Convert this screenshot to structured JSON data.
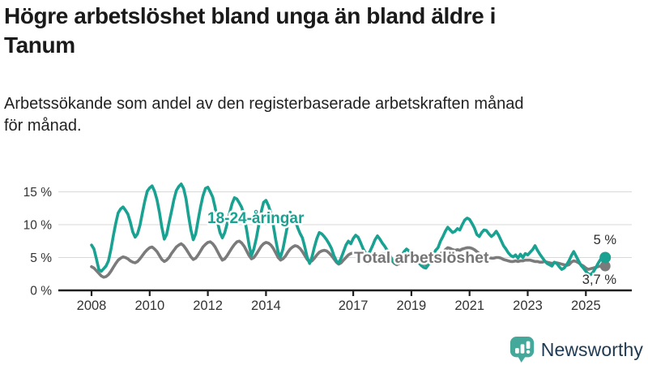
{
  "header": {
    "title": "Högre arbetslöshet bland unga än bland äldre i Tanum",
    "title_lines": [
      "Högre arbetslöshet bland unga än bland äldre i",
      "Tanum"
    ],
    "subtitle": "Arbetssökande som andel av den registerbaserade arbetskraften månad för månad.",
    "subtitle_lines": [
      "Arbetssökande som andel av den registerbaserade arbetskraften månad",
      "för månad."
    ]
  },
  "chart_data": {
    "type": "line",
    "unit": "%",
    "x_start_year": 2008,
    "x_end_year_month": "2025-09",
    "points_per_year": 12,
    "x_tick_years": [
      2008,
      2010,
      2012,
      2014,
      2017,
      2019,
      2021,
      2023,
      2025
    ],
    "y_ticks": [
      0,
      5,
      10,
      15
    ],
    "y_tick_labels": [
      "0 %",
      "5 %",
      "10 %",
      "15 %"
    ],
    "ylim": [
      0,
      17
    ],
    "grid": "horizontal-only",
    "series": [
      {
        "id": "total",
        "name": "Total arbetslöshet",
        "color": "#7b7b7b",
        "last_value": 3.7,
        "values": [
          3.6,
          3.4,
          3.0,
          2.6,
          2.2,
          2.0,
          2.1,
          2.4,
          2.9,
          3.5,
          4.1,
          4.6,
          4.9,
          5.1,
          5.0,
          4.8,
          4.5,
          4.3,
          4.2,
          4.4,
          4.8,
          5.3,
          5.8,
          6.2,
          6.5,
          6.6,
          6.3,
          5.9,
          5.3,
          4.7,
          4.4,
          4.6,
          5.0,
          5.6,
          6.1,
          6.6,
          6.9,
          7.1,
          6.8,
          6.3,
          5.7,
          5.1,
          4.7,
          4.9,
          5.4,
          6.0,
          6.6,
          7.0,
          7.3,
          7.4,
          7.1,
          6.6,
          5.9,
          5.2,
          4.6,
          4.8,
          5.3,
          5.9,
          6.5,
          7.0,
          7.4,
          7.5,
          7.2,
          6.7,
          6.0,
          5.3,
          4.8,
          5.0,
          5.5,
          6.1,
          6.7,
          7.1,
          7.3,
          7.2,
          6.9,
          6.4,
          5.7,
          5.0,
          4.6,
          4.8,
          5.2,
          5.8,
          6.3,
          6.6,
          6.8,
          6.7,
          6.4,
          5.9,
          5.3,
          4.7,
          4.3,
          4.5,
          4.9,
          5.4,
          5.8,
          6.0,
          6.1,
          6.0,
          5.7,
          5.3,
          4.8,
          4.3,
          4.0,
          4.2,
          4.6,
          5.0,
          5.4,
          5.6,
          5.7,
          5.8,
          5.6,
          5.2,
          4.7,
          4.3,
          4.1,
          4.3,
          4.6,
          5.0,
          5.3,
          5.5,
          5.6,
          5.5,
          5.3,
          4.9,
          4.5,
          4.1,
          3.9,
          4.1,
          4.4,
          4.7,
          5.0,
          5.2,
          5.3,
          5.2,
          5.0,
          4.7,
          4.3,
          4.0,
          3.9,
          4.1,
          4.4,
          4.8,
          5.1,
          5.3,
          5.6,
          5.8,
          6.2,
          6.5,
          6.4,
          6.2,
          6.1,
          6.2,
          6.1,
          6.3,
          6.4,
          6.5,
          6.5,
          6.4,
          6.2,
          5.9,
          5.6,
          5.4,
          5.3,
          5.2,
          5.0,
          4.9,
          4.9,
          5.0,
          5.0,
          4.9,
          4.7,
          4.6,
          4.5,
          4.4,
          4.4,
          4.5,
          4.4,
          4.5,
          4.5,
          4.6,
          4.6,
          4.6,
          4.5,
          4.4,
          4.4,
          4.3,
          4.3,
          4.4,
          4.3,
          4.2,
          4.1,
          4.2,
          4.2,
          4.1,
          4.0,
          3.9,
          3.8,
          3.9,
          4.3,
          4.5,
          4.4,
          4.2,
          3.9,
          3.7,
          3.4,
          3.2,
          3.3,
          3.4,
          3.5,
          3.6,
          3.7,
          3.7,
          3.7
        ]
      },
      {
        "id": "youth",
        "name": "18-24-åringar",
        "color": "#19a292",
        "last_value": 5.0,
        "values": [
          6.9,
          6.3,
          4.8,
          3.2,
          2.9,
          3.3,
          3.7,
          4.5,
          6.2,
          8.3,
          10.2,
          11.8,
          12.4,
          12.7,
          12.2,
          11.6,
          10.4,
          8.9,
          8.1,
          8.6,
          9.9,
          11.8,
          13.6,
          15.1,
          15.6,
          15.9,
          15.1,
          13.8,
          11.9,
          9.6,
          7.8,
          8.5,
          10.3,
          12.0,
          13.8,
          15.2,
          15.8,
          16.2,
          15.5,
          13.9,
          11.4,
          9.2,
          7.7,
          8.6,
          10.7,
          12.7,
          14.4,
          15.5,
          15.7,
          15.0,
          14.2,
          12.6,
          10.4,
          8.8,
          8.0,
          8.8,
          10.2,
          11.8,
          13.2,
          14.1,
          13.9,
          13.3,
          12.6,
          11.2,
          9.2,
          6.9,
          5.3,
          6.3,
          7.9,
          9.9,
          11.9,
          13.4,
          13.7,
          12.9,
          11.8,
          9.9,
          7.7,
          5.8,
          5.1,
          6.3,
          8.2,
          10.1,
          11.9,
          11.2,
          10.9,
          9.6,
          8.7,
          8.0,
          6.6,
          5.0,
          4.1,
          5.1,
          6.6,
          7.9,
          8.8,
          8.6,
          8.2,
          7.7,
          7.1,
          6.4,
          5.3,
          4.5,
          4.1,
          4.9,
          5.9,
          6.9,
          7.5,
          7.1,
          7.9,
          8.4,
          8.1,
          7.3,
          6.4,
          5.7,
          5.3,
          6.0,
          6.8,
          7.7,
          8.3,
          7.8,
          7.2,
          6.7,
          6.1,
          5.4,
          4.7,
          4.2,
          4.1,
          4.6,
          5.3,
          5.9,
          6.3,
          6.0,
          5.7,
          5.2,
          4.7,
          4.2,
          3.8,
          3.5,
          3.4,
          3.9,
          4.6,
          5.4,
          6.1,
          6.5,
          7.5,
          8.2,
          9.0,
          9.6,
          9.2,
          8.8,
          9.0,
          9.4,
          9.2,
          10.0,
          10.7,
          11.0,
          10.8,
          10.2,
          9.5,
          8.5,
          8.2,
          8.8,
          9.2,
          9.1,
          8.6,
          8.2,
          8.5,
          9.0,
          8.4,
          7.6,
          6.8,
          6.3,
          5.7,
          5.3,
          5.1,
          5.4,
          4.9,
          5.5,
          5.0,
          5.6,
          5.4,
          5.8,
          6.2,
          6.8,
          6.1,
          5.5,
          5.0,
          4.5,
          4.1,
          3.9,
          3.7,
          4.3,
          4.1,
          3.6,
          3.2,
          3.4,
          3.9,
          4.5,
          5.3,
          5.9,
          5.2,
          4.5,
          3.8,
          3.4,
          2.9,
          2.5,
          2.4,
          2.8,
          3.4,
          4.1,
          4.7,
          5.0,
          5.0
        ]
      }
    ],
    "end_labels": {
      "youth": "5 %",
      "total": "3,7 %"
    }
  },
  "branding": {
    "logo_text": "Newsworthy",
    "logo_icon": "bar-chart-pin-icon",
    "logo_text_color": "#1e3a52",
    "logo_icon_color": "#44a99a"
  }
}
